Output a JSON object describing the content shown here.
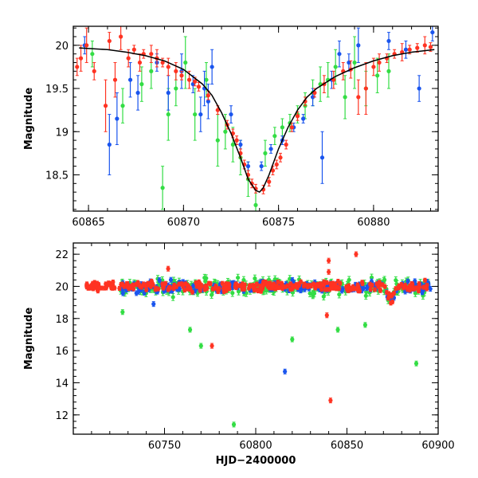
{
  "chart_data": [
    {
      "type": "scatter",
      "panel": "top",
      "xlabel": "",
      "ylabel": "Magnitude",
      "xlim": [
        60864.2,
        60883.4
      ],
      "ylim": [
        20.22,
        18.08
      ],
      "xticks": [
        60865,
        60870,
        60875,
        60880
      ],
      "xtick_labels": [
        "60865",
        "60870",
        "60875",
        "60880"
      ],
      "yticks": [
        18.5,
        19,
        19.5,
        20
      ],
      "ytick_labels": [
        "18.5",
        "19",
        "19.5",
        "20"
      ],
      "grid": false,
      "legend": "none",
      "series": [
        {
          "color": "#ff3322",
          "x": [
            60864.4,
            60864.6,
            60864.9,
            60865.3,
            60865.9,
            60866.1,
            60866.4,
            60866.7,
            60867.1,
            60867.4,
            60867.7,
            60867.9,
            60868.3,
            60868.6,
            60868.9,
            60869.2,
            60869.6,
            60869.9,
            60870.3,
            60870.6,
            60870.8,
            60871.3,
            60871.8,
            60872.3,
            60872.6,
            60872.8,
            60873.0,
            60873.2,
            60873.4,
            60873.6,
            60873.8,
            60874.2,
            60874.5,
            60874.7,
            60874.9,
            60875.1,
            60875.4,
            60875.7,
            60876.0,
            60876.4,
            60876.9,
            60877.4,
            60877.9,
            60878.4,
            60878.8,
            60879.2,
            60879.6,
            60880.0,
            60880.3,
            60880.7,
            60881.1,
            60881.5,
            60881.9,
            60882.3,
            60882.7,
            60883.0
          ],
          "y": [
            19.75,
            19.85,
            20.0,
            19.7,
            19.3,
            20.05,
            19.6,
            20.1,
            19.85,
            19.95,
            19.8,
            19.9,
            19.9,
            19.85,
            19.8,
            19.75,
            19.7,
            19.65,
            19.6,
            19.58,
            19.52,
            19.42,
            19.25,
            19.08,
            18.98,
            18.9,
            18.75,
            18.62,
            18.5,
            18.4,
            18.34,
            18.33,
            18.42,
            18.55,
            18.62,
            18.7,
            18.85,
            19.05,
            19.18,
            19.35,
            19.45,
            19.55,
            19.6,
            19.7,
            19.72,
            19.4,
            19.5,
            19.75,
            19.8,
            19.85,
            19.9,
            19.92,
            19.95,
            19.97,
            20.0,
            19.98
          ],
          "yerr": [
            0.1,
            0.15,
            0.2,
            0.1,
            0.3,
            0.1,
            0.2,
            0.15,
            0.1,
            0.05,
            0.1,
            0.05,
            0.1,
            0.1,
            0.05,
            0.1,
            0.1,
            0.05,
            0.1,
            0.05,
            0.05,
            0.05,
            0.05,
            0.05,
            0.05,
            0.05,
            0.05,
            0.05,
            0.05,
            0.05,
            0.05,
            0.05,
            0.05,
            0.05,
            0.05,
            0.05,
            0.05,
            0.05,
            0.05,
            0.05,
            0.05,
            0.1,
            0.1,
            0.1,
            0.1,
            0.2,
            0.3,
            0.1,
            0.1,
            0.05,
            0.05,
            0.1,
            0.05,
            0.05,
            0.1,
            0.05
          ]
        },
        {
          "color": "#1a55ee",
          "x": [
            60864.8,
            60866.1,
            60866.5,
            60867.2,
            60867.6,
            60868.6,
            60869.2,
            60869.9,
            60870.5,
            60870.9,
            60871.1,
            60871.3,
            60871.5,
            60872.5,
            60873.0,
            60873.4,
            60874.1,
            60874.6,
            60875.2,
            60875.8,
            60876.3,
            60876.8,
            60877.3,
            60877.8,
            60878.2,
            60878.7,
            60879.2,
            60880.8,
            60881.7,
            60882.4,
            60883.1
          ],
          "y": [
            20.0,
            18.85,
            19.15,
            19.6,
            19.45,
            19.8,
            19.45,
            19.7,
            19.55,
            19.2,
            19.5,
            19.35,
            19.75,
            19.2,
            18.85,
            18.6,
            18.6,
            18.8,
            18.9,
            19.05,
            19.15,
            19.4,
            18.7,
            19.6,
            19.9,
            19.8,
            20.0,
            20.05,
            19.95,
            19.5,
            20.15
          ],
          "yerr": [
            0.1,
            0.35,
            0.3,
            0.2,
            0.2,
            0.1,
            0.2,
            0.2,
            0.1,
            0.2,
            0.2,
            0.2,
            0.2,
            0.1,
            0.05,
            0.05,
            0.05,
            0.05,
            0.05,
            0.05,
            0.05,
            0.1,
            0.3,
            0.1,
            0.15,
            0.1,
            0.2,
            0.1,
            0.1,
            0.15,
            0.1
          ]
        },
        {
          "color": "#33dd44",
          "x": [
            60865.2,
            60866.8,
            60867.8,
            60868.3,
            60868.9,
            60869.2,
            60869.6,
            60870.1,
            60870.6,
            60871.2,
            60871.8,
            60872.2,
            60872.6,
            60873.0,
            60873.4,
            60873.8,
            60874.3,
            60874.8,
            60875.2,
            60875.6,
            60876.0,
            60876.4,
            60876.8,
            60877.2,
            60877.6,
            60878.0,
            60878.5,
            60879.0,
            60879.6,
            60880.2,
            60880.8
          ],
          "y": [
            19.9,
            19.3,
            19.55,
            19.7,
            18.35,
            19.2,
            19.5,
            19.8,
            19.2,
            19.6,
            18.9,
            19.0,
            18.85,
            18.7,
            18.45,
            18.15,
            18.75,
            18.95,
            19.05,
            19.1,
            19.2,
            19.3,
            19.45,
            19.55,
            19.6,
            19.75,
            19.4,
            19.8,
            19.5,
            19.65,
            19.7
          ],
          "yerr": [
            0.15,
            0.2,
            0.2,
            0.2,
            0.25,
            0.3,
            0.2,
            0.3,
            0.3,
            0.2,
            0.3,
            0.2,
            0.2,
            0.2,
            0.2,
            0.2,
            0.15,
            0.1,
            0.1,
            0.1,
            0.1,
            0.15,
            0.15,
            0.2,
            0.2,
            0.2,
            0.25,
            0.3,
            0.2,
            0.2,
            0.2
          ]
        }
      ],
      "model_curve": {
        "color": "#000000",
        "x": [
          60864.5,
          60866,
          60867,
          60868,
          60869,
          60870,
          60871,
          60871.5,
          60872,
          60872.5,
          60873,
          60873.4,
          60873.8,
          60874.0,
          60874.2,
          60874.5,
          60875,
          60875.5,
          60876,
          60876.5,
          60877,
          60878,
          60879,
          60880,
          60881,
          60882,
          60883.2
        ],
        "y": [
          19.97,
          19.95,
          19.92,
          19.88,
          19.82,
          19.72,
          19.55,
          19.42,
          19.22,
          18.98,
          18.7,
          18.45,
          18.32,
          18.3,
          18.35,
          18.5,
          18.8,
          19.05,
          19.25,
          19.4,
          19.5,
          19.64,
          19.74,
          19.82,
          19.88,
          19.92,
          19.95
        ]
      }
    },
    {
      "type": "scatter",
      "panel": "bottom",
      "xlabel": "HJD−2400000",
      "ylabel": "Magnitude",
      "xlim": [
        60700,
        60900
      ],
      "ylim": [
        22.7,
        10.8
      ],
      "xticks": [
        60750,
        60800,
        60850,
        60900
      ],
      "xtick_labels": [
        "60750",
        "60800",
        "60850",
        "60900"
      ],
      "yticks": [
        12,
        14,
        16,
        18,
        20,
        22
      ],
      "ytick_labels": [
        "12",
        "14",
        "16",
        "18",
        "20",
        "22"
      ],
      "grid": false,
      "legend": "none",
      "outliers": [
        {
          "color": "#33dd44",
          "x": 60788,
          "y": 11.4
        },
        {
          "color": "#ff3322",
          "x": 60841,
          "y": 12.9
        },
        {
          "color": "#1a55ee",
          "x": 60816,
          "y": 14.7
        },
        {
          "color": "#33dd44",
          "x": 60770,
          "y": 16.3
        },
        {
          "color": "#ff3322",
          "x": 60776,
          "y": 16.3
        },
        {
          "color": "#33dd44",
          "x": 60888,
          "y": 15.2
        },
        {
          "color": "#33dd44",
          "x": 60764,
          "y": 17.3
        },
        {
          "color": "#33dd44",
          "x": 60845,
          "y": 17.3
        },
        {
          "color": "#33dd44",
          "x": 60860,
          "y": 17.6
        },
        {
          "color": "#33dd44",
          "x": 60820,
          "y": 16.7
        },
        {
          "color": "#ff3322",
          "x": 60839,
          "y": 18.2
        },
        {
          "color": "#33dd44",
          "x": 60727,
          "y": 18.4
        },
        {
          "color": "#1a55ee",
          "x": 60744,
          "y": 18.9
        },
        {
          "color": "#ff3322",
          "x": 60840,
          "y": 21.6
        },
        {
          "color": "#ff3322",
          "x": 60855,
          "y": 22.0
        },
        {
          "color": "#ff3322",
          "x": 60840,
          "y": 20.9
        },
        {
          "color": "#ff3322",
          "x": 60752,
          "y": 21.1
        }
      ],
      "bands": [
        {
          "color": "#33dd44",
          "x_start": 60726,
          "x_end": 60896,
          "mean": 20.0,
          "spread": 0.85,
          "count": 240
        },
        {
          "color": "#1a55ee",
          "x_start": 60726,
          "x_end": 60896,
          "mean": 20.0,
          "spread": 0.6,
          "count": 200
        },
        {
          "color": "#ff3322",
          "x_start": 60706,
          "x_end": 60896,
          "mean": 20.0,
          "spread": 0.5,
          "count": 320
        }
      ]
    }
  ]
}
